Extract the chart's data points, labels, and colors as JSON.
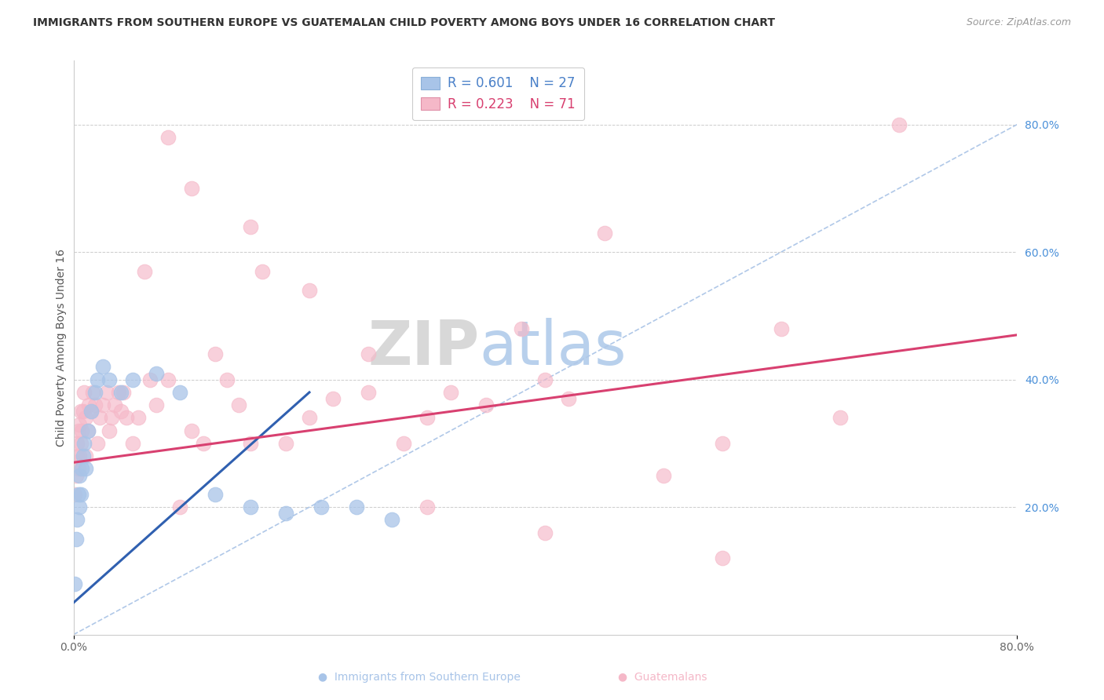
{
  "title": "IMMIGRANTS FROM SOUTHERN EUROPE VS GUATEMALAN CHILD POVERTY AMONG BOYS UNDER 16 CORRELATION CHART",
  "source": "Source: ZipAtlas.com",
  "ylabel": "Child Poverty Among Boys Under 16",
  "right_yticks": [
    "80.0%",
    "60.0%",
    "40.0%",
    "20.0%"
  ],
  "right_ytick_vals": [
    0.8,
    0.6,
    0.4,
    0.2
  ],
  "legend_blue_label": "Immigrants from Southern Europe",
  "legend_pink_label": "Guatemalans",
  "legend_blue_r": "R = 0.601",
  "legend_blue_n": "N = 27",
  "legend_pink_r": "R = 0.223",
  "legend_pink_n": "N = 71",
  "blue_color": "#a8c4e8",
  "pink_color": "#f5b8c8",
  "blue_line_color": "#3060b0",
  "pink_line_color": "#d84070",
  "diag_line_color": "#b0c8e8",
  "title_color": "#333333",
  "xlim": [
    0.0,
    0.8
  ],
  "ylim": [
    0.0,
    0.9
  ],
  "blue_line_x0": 0.0,
  "blue_line_y0": 0.05,
  "blue_line_x1": 0.2,
  "blue_line_y1": 0.38,
  "pink_line_x0": 0.0,
  "pink_line_x1": 0.8,
  "pink_line_y0": 0.27,
  "pink_line_y1": 0.47,
  "blue_scatter_x": [
    0.001,
    0.002,
    0.003,
    0.004,
    0.005,
    0.005,
    0.006,
    0.007,
    0.008,
    0.009,
    0.01,
    0.012,
    0.015,
    0.018,
    0.02,
    0.025,
    0.03,
    0.04,
    0.05,
    0.07,
    0.09,
    0.12,
    0.15,
    0.18,
    0.21,
    0.24,
    0.27
  ],
  "blue_scatter_y": [
    0.08,
    0.15,
    0.18,
    0.22,
    0.2,
    0.25,
    0.22,
    0.26,
    0.28,
    0.3,
    0.26,
    0.32,
    0.35,
    0.38,
    0.4,
    0.42,
    0.4,
    0.38,
    0.4,
    0.41,
    0.38,
    0.22,
    0.2,
    0.19,
    0.2,
    0.2,
    0.18
  ],
  "pink_scatter_x": [
    0.001,
    0.001,
    0.002,
    0.003,
    0.003,
    0.004,
    0.004,
    0.005,
    0.005,
    0.006,
    0.006,
    0.007,
    0.008,
    0.009,
    0.01,
    0.01,
    0.012,
    0.013,
    0.015,
    0.016,
    0.018,
    0.02,
    0.022,
    0.025,
    0.028,
    0.03,
    0.032,
    0.035,
    0.038,
    0.04,
    0.042,
    0.045,
    0.05,
    0.055,
    0.06,
    0.065,
    0.07,
    0.08,
    0.09,
    0.1,
    0.11,
    0.12,
    0.13,
    0.14,
    0.15,
    0.16,
    0.18,
    0.2,
    0.22,
    0.25,
    0.28,
    0.3,
    0.32,
    0.35,
    0.38,
    0.4,
    0.42,
    0.45,
    0.5,
    0.55,
    0.6,
    0.65,
    0.7,
    0.08,
    0.1,
    0.15,
    0.2,
    0.25,
    0.3,
    0.4,
    0.55
  ],
  "pink_scatter_y": [
    0.22,
    0.27,
    0.25,
    0.28,
    0.3,
    0.26,
    0.32,
    0.28,
    0.33,
    0.3,
    0.35,
    0.32,
    0.35,
    0.38,
    0.28,
    0.34,
    0.32,
    0.36,
    0.35,
    0.38,
    0.36,
    0.3,
    0.34,
    0.36,
    0.38,
    0.32,
    0.34,
    0.36,
    0.38,
    0.35,
    0.38,
    0.34,
    0.3,
    0.34,
    0.57,
    0.4,
    0.36,
    0.4,
    0.2,
    0.32,
    0.3,
    0.44,
    0.4,
    0.36,
    0.3,
    0.57,
    0.3,
    0.34,
    0.37,
    0.38,
    0.3,
    0.34,
    0.38,
    0.36,
    0.48,
    0.4,
    0.37,
    0.63,
    0.25,
    0.3,
    0.48,
    0.34,
    0.8,
    0.78,
    0.7,
    0.64,
    0.54,
    0.44,
    0.2,
    0.16,
    0.12
  ]
}
